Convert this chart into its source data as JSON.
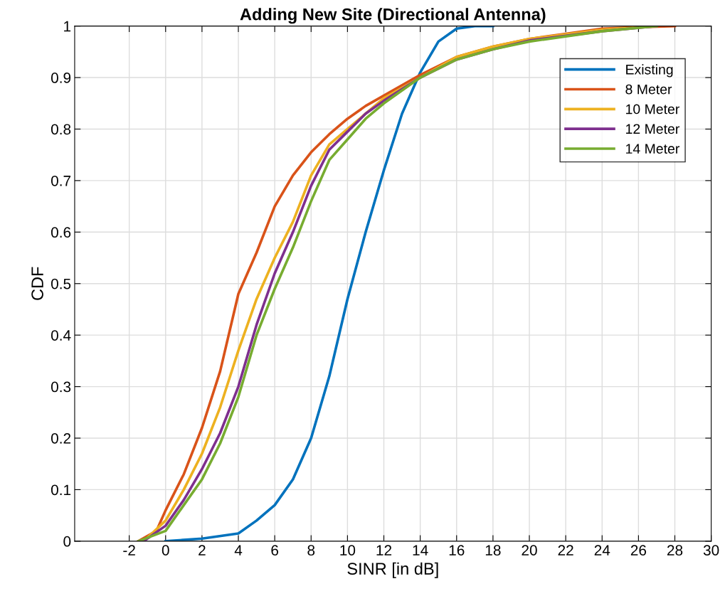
{
  "chart_data": {
    "type": "line",
    "title": "Adding New Site (Directional Antenna)",
    "xlabel": "SINR [in dB]",
    "ylabel": "CDF",
    "xlim": [
      -5,
      30
    ],
    "xticks": [
      -2,
      0,
      2,
      4,
      6,
      8,
      10,
      12,
      14,
      16,
      18,
      20,
      22,
      24,
      26,
      28,
      30
    ],
    "ylim": [
      0,
      1
    ],
    "yticks": [
      0,
      0.1,
      0.2,
      0.3,
      0.4,
      0.5,
      0.6,
      0.7,
      0.8,
      0.9,
      1
    ],
    "grid": true,
    "legend": "top right",
    "marker": "none",
    "line_style": "solid",
    "series": [
      {
        "name": "Existing",
        "color": "#0072bd",
        "x": [
          0,
          2,
          4,
          5,
          6,
          7,
          8,
          9,
          10,
          11,
          12,
          13,
          14,
          15,
          16,
          17,
          18
        ],
        "values": [
          0,
          0.005,
          0.015,
          0.04,
          0.07,
          0.12,
          0.2,
          0.32,
          0.47,
          0.6,
          0.72,
          0.83,
          0.91,
          0.97,
          0.995,
          1,
          1
        ]
      },
      {
        "name": "8 Meter",
        "color": "#d95319",
        "x": [
          -1.5,
          -0.5,
          0,
          1,
          2,
          3,
          4,
          5,
          6,
          7,
          8,
          9,
          10,
          11,
          12,
          14,
          16,
          18,
          20,
          22,
          24,
          26,
          28
        ],
        "values": [
          0,
          0.02,
          0.06,
          0.13,
          0.22,
          0.33,
          0.48,
          0.56,
          0.65,
          0.71,
          0.755,
          0.79,
          0.82,
          0.845,
          0.865,
          0.905,
          0.94,
          0.96,
          0.975,
          0.985,
          0.995,
          0.998,
          1
        ]
      },
      {
        "name": "10 Meter",
        "color": "#edb120",
        "x": [
          -1.2,
          0,
          1,
          2,
          3,
          4,
          5,
          6,
          7,
          8,
          9,
          10,
          11,
          12,
          14,
          16,
          18,
          20,
          24,
          27
        ],
        "values": [
          0,
          0.04,
          0.1,
          0.17,
          0.26,
          0.37,
          0.47,
          0.55,
          0.62,
          0.71,
          0.77,
          0.8,
          0.83,
          0.86,
          0.9,
          0.94,
          0.96,
          0.975,
          0.993,
          1
        ]
      },
      {
        "name": "12 Meter",
        "color": "#7e2f8e",
        "x": [
          -1.2,
          0,
          1,
          2,
          3,
          4,
          5,
          6,
          7,
          8,
          9,
          10,
          11,
          12,
          14,
          16,
          18,
          20,
          24,
          27
        ],
        "values": [
          0,
          0.03,
          0.08,
          0.14,
          0.21,
          0.3,
          0.42,
          0.52,
          0.6,
          0.69,
          0.76,
          0.795,
          0.83,
          0.855,
          0.9,
          0.935,
          0.955,
          0.972,
          0.99,
          1
        ]
      },
      {
        "name": "14 Meter",
        "color": "#77ac30",
        "x": [
          -1.5,
          0,
          1,
          2,
          3,
          4,
          5,
          6,
          7,
          8,
          9,
          10,
          11,
          12,
          14,
          16,
          18,
          20,
          24,
          27
        ],
        "values": [
          0,
          0.02,
          0.07,
          0.12,
          0.19,
          0.28,
          0.4,
          0.49,
          0.57,
          0.66,
          0.74,
          0.78,
          0.82,
          0.85,
          0.9,
          0.935,
          0.955,
          0.97,
          0.99,
          1
        ]
      }
    ]
  }
}
